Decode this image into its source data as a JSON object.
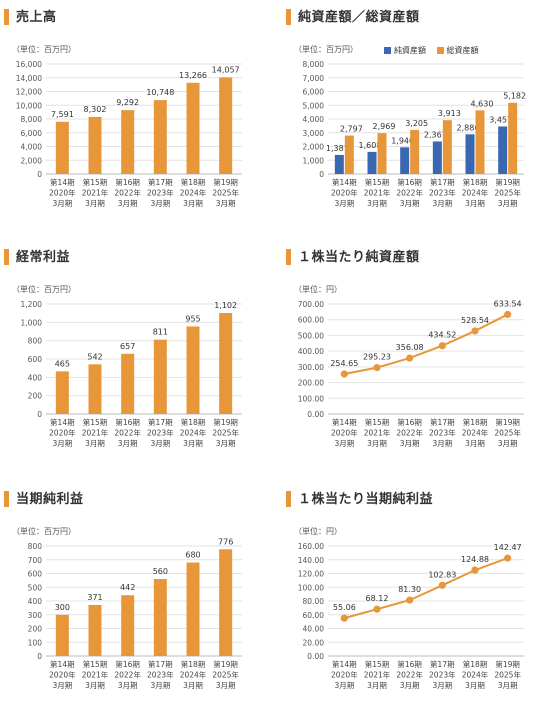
{
  "colors": {
    "orange": "#e7973a",
    "blue": "#3a67b1",
    "grid": "#e3e3e3",
    "axis": "#bdbdbd"
  },
  "chart_data": [
    {
      "id": "sales",
      "type": "bar",
      "title": "売上高",
      "unit": "（単位：百万円）",
      "categories": [
        [
          "第14期",
          "2020年",
          "3月期"
        ],
        [
          "第15期",
          "2021年",
          "3月期"
        ],
        [
          "第16期",
          "2022年",
          "3月期"
        ],
        [
          "第17期",
          "2023年",
          "3月期"
        ],
        [
          "第18期",
          "2024年",
          "3月期"
        ],
        [
          "第19期",
          "2025年",
          "3月期"
        ]
      ],
      "values": [
        7591,
        8302,
        9292,
        10748,
        13266,
        14057
      ],
      "value_labels": [
        "7,591",
        "8,302",
        "9,292",
        "10,748",
        "13,266",
        "14,057"
      ],
      "ylim": [
        0,
        16000
      ],
      "yticks": [
        "0",
        "2,000",
        "4,000",
        "6,000",
        "8,000",
        "10,000",
        "12,000",
        "14,000",
        "16,000"
      ],
      "grid": true
    },
    {
      "id": "net_assets",
      "type": "bar",
      "title": "純資産額／総資産額",
      "unit": "（単位：百万円）",
      "legend": [
        "純資産額",
        "総資産額"
      ],
      "legend_position": "top",
      "categories": [
        [
          "第14期",
          "2020年",
          "3月期"
        ],
        [
          "第15期",
          "2021年",
          "3月期"
        ],
        [
          "第16期",
          "2022年",
          "3月期"
        ],
        [
          "第17期",
          "2023年",
          "3月期"
        ],
        [
          "第18期",
          "2024年",
          "3月期"
        ],
        [
          "第19期",
          "2025年",
          "3月期"
        ]
      ],
      "series": [
        {
          "name": "純資産額",
          "values": [
            1387,
            1608,
            1940,
            2367,
            2886,
            3457
          ],
          "value_labels": [
            "1,387",
            "1,608",
            "1,940",
            "2,367",
            "2,886",
            "3,457"
          ]
        },
        {
          "name": "総資産額",
          "values": [
            2797,
            2969,
            3205,
            3913,
            4630,
            5182
          ],
          "value_labels": [
            "2,797",
            "2,969",
            "3,205",
            "3,913",
            "4,630",
            "5,182"
          ]
        }
      ],
      "ylim": [
        0,
        8000
      ],
      "yticks": [
        "0",
        "1,000",
        "2,000",
        "3,000",
        "4,000",
        "5,000",
        "6,000",
        "7,000",
        "8,000"
      ],
      "grid": true
    },
    {
      "id": "ordinary_income",
      "type": "bar",
      "title": "経常利益",
      "unit": "（単位：百万円）",
      "categories": [
        [
          "第14期",
          "2020年",
          "3月期"
        ],
        [
          "第15期",
          "2021年",
          "3月期"
        ],
        [
          "第16期",
          "2022年",
          "3月期"
        ],
        [
          "第17期",
          "2023年",
          "3月期"
        ],
        [
          "第18期",
          "2024年",
          "3月期"
        ],
        [
          "第19期",
          "2025年",
          "3月期"
        ]
      ],
      "values": [
        465,
        542,
        657,
        811,
        955,
        1102
      ],
      "value_labels": [
        "465",
        "542",
        "657",
        "811",
        "955",
        "1,102"
      ],
      "ylim": [
        0,
        1200
      ],
      "yticks": [
        "0",
        "200",
        "400",
        "600",
        "800",
        "1,000",
        "1,200"
      ],
      "grid": true
    },
    {
      "id": "bps",
      "type": "line",
      "title": "１株当たり純資産額",
      "unit": "（単位：円）",
      "categories": [
        [
          "第14期",
          "2020年",
          "3月期"
        ],
        [
          "第15期",
          "2021年",
          "3月期"
        ],
        [
          "第16期",
          "2022年",
          "3月期"
        ],
        [
          "第17期",
          "2023年",
          "3月期"
        ],
        [
          "第18期",
          "2024年",
          "3月期"
        ],
        [
          "第19期",
          "2025年",
          "3月期"
        ]
      ],
      "values": [
        254.65,
        295.23,
        356.08,
        434.52,
        528.54,
        633.54
      ],
      "value_labels": [
        "254.65",
        "295.23",
        "356.08",
        "434.52",
        "528.54",
        "633.54"
      ],
      "ylim": [
        0,
        700
      ],
      "yticks": [
        "0.00",
        "100.00",
        "200.00",
        "300.00",
        "400.00",
        "500.00",
        "600.00",
        "700.00"
      ],
      "grid": true
    },
    {
      "id": "net_income",
      "type": "bar",
      "title": "当期純利益",
      "unit": "（単位：百万円）",
      "categories": [
        [
          "第14期",
          "2020年",
          "3月期"
        ],
        [
          "第15期",
          "2021年",
          "3月期"
        ],
        [
          "第16期",
          "2022年",
          "3月期"
        ],
        [
          "第17期",
          "2023年",
          "3月期"
        ],
        [
          "第18期",
          "2024年",
          "3月期"
        ],
        [
          "第19期",
          "2025年",
          "3月期"
        ]
      ],
      "values": [
        300,
        371,
        442,
        560,
        680,
        776
      ],
      "value_labels": [
        "300",
        "371",
        "442",
        "560",
        "680",
        "776"
      ],
      "ylim": [
        0,
        800
      ],
      "yticks": [
        "0",
        "100",
        "200",
        "300",
        "400",
        "500",
        "600",
        "700",
        "800"
      ],
      "grid": true
    },
    {
      "id": "eps",
      "type": "line",
      "title": "１株当たり当期純利益",
      "unit": "（単位：円）",
      "categories": [
        [
          "第14期",
          "2020年",
          "3月期"
        ],
        [
          "第15期",
          "2021年",
          "3月期"
        ],
        [
          "第16期",
          "2022年",
          "3月期"
        ],
        [
          "第17期",
          "2023年",
          "3月期"
        ],
        [
          "第18期",
          "2024年",
          "3月期"
        ],
        [
          "第19期",
          "2025年",
          "3月期"
        ]
      ],
      "values": [
        55.06,
        68.12,
        81.3,
        102.83,
        124.88,
        142.47
      ],
      "value_labels": [
        "55.06",
        "68.12",
        "81.30",
        "102.83",
        "124.88",
        "142.47"
      ],
      "ylim": [
        0,
        160
      ],
      "yticks": [
        "0.00",
        "20.00",
        "40.00",
        "60.00",
        "80.00",
        "100.00",
        "120.00",
        "140.00",
        "160.00"
      ],
      "grid": true
    }
  ]
}
